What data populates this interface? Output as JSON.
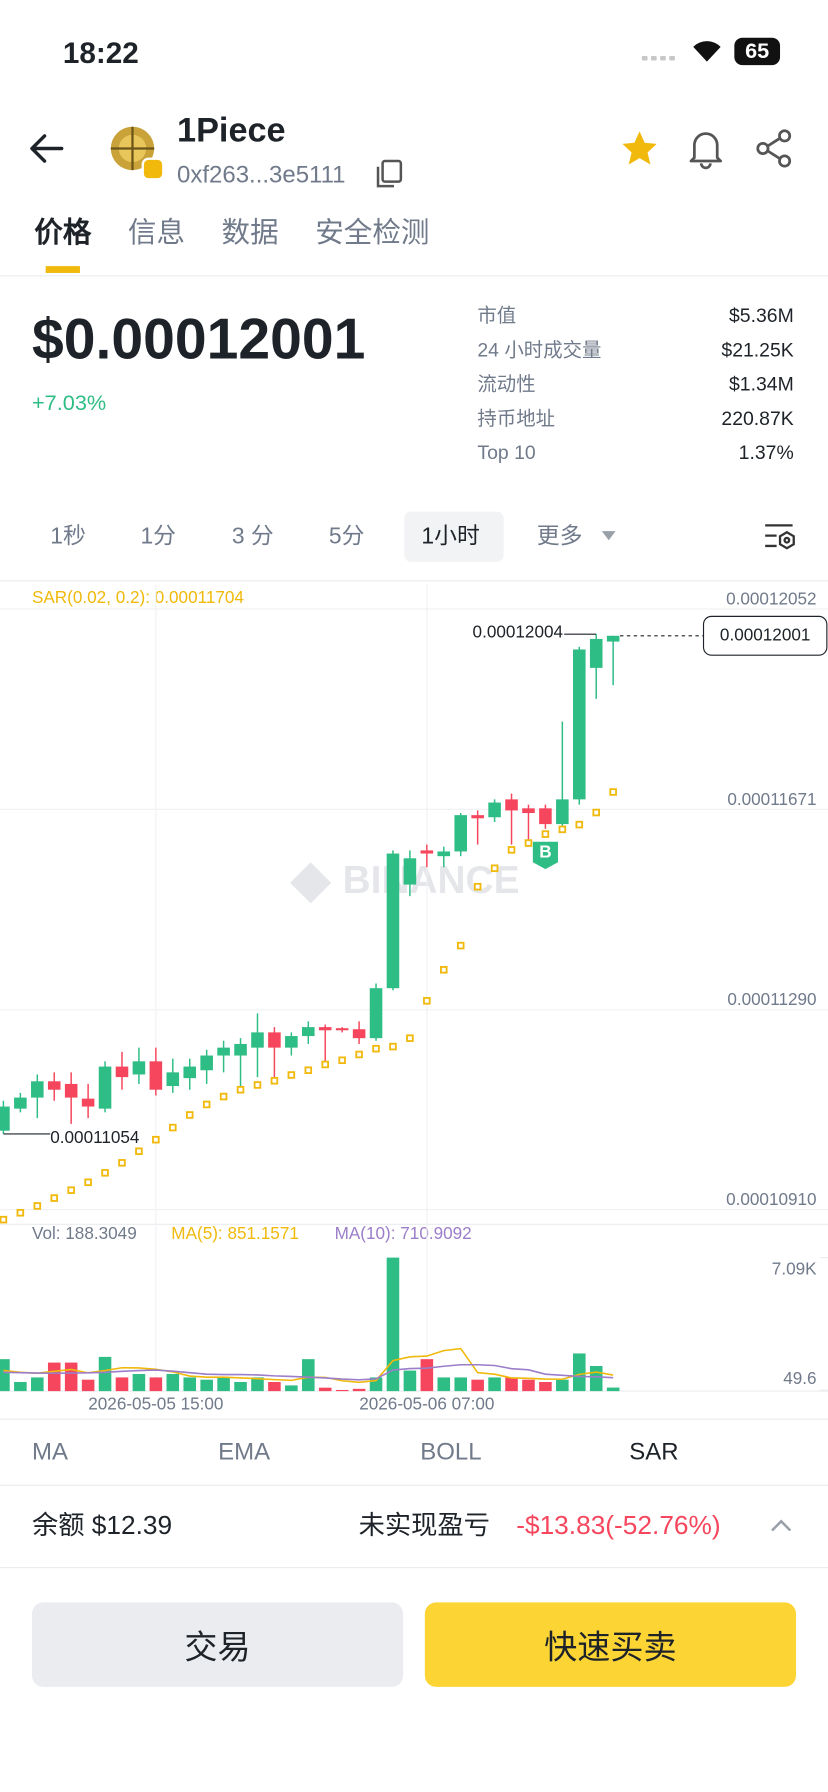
{
  "status_bar": {
    "time": "18:22",
    "battery": "65"
  },
  "header": {
    "title": "1Piece",
    "address": "0xf263...3e5111"
  },
  "tabs": [
    "价格",
    "信息",
    "数据",
    "安全检测"
  ],
  "price": {
    "value": "$0.00012001",
    "change": "+7.03%"
  },
  "stats": [
    [
      "市值",
      "$5.36M"
    ],
    [
      "24 小时成交量",
      "$21.25K"
    ],
    [
      "流动性",
      "$1.34M"
    ],
    [
      "持币地址",
      "220.87K"
    ],
    [
      "Top 10",
      "1.37%"
    ]
  ],
  "intervals": [
    "1秒",
    "1分",
    "3 分",
    "5分",
    "1小时",
    "更多"
  ],
  "chart_data": {
    "type": "candlestick",
    "indicator_label": "SAR(0.02, 0.2): 0.00011704",
    "watermark": "BINANCE",
    "categories": [
      null,
      null,
      null,
      null,
      null,
      null,
      null,
      null,
      null,
      "2026-05-05 15:00",
      null,
      null,
      null,
      null,
      null,
      null,
      null,
      null,
      null,
      null,
      null,
      null,
      null,
      null,
      null,
      "2026-05-06 07:00",
      null,
      null,
      null,
      null,
      null,
      null,
      null,
      null,
      null,
      null,
      null
    ],
    "open": [
      0.0001106,
      0.00011102,
      0.00011123,
      0.00011154,
      0.00011149,
      0.00011121,
      0.00011102,
      0.00011182,
      0.00011167,
      0.00011192,
      0.00011145,
      0.0001116,
      0.00011175,
      0.00011203,
      0.00011203,
      0.00011218,
      0.00011247,
      0.00011218,
      0.0001124,
      0.00011257,
      0.00011255,
      0.00011253,
      0.00011236,
      0.00011331,
      0.00011528,
      0.00011593,
      0.00011582,
      0.00011591,
      0.0001166,
      0.00011656,
      0.0001169,
      0.00011673,
      0.00011673,
      0.00011643,
      0.0001169,
      0.0001194,
      0.0001199
    ],
    "high": [
      0.00011117,
      0.00011132,
      0.00011167,
      0.00011171,
      0.00011171,
      0.00011149,
      0.00011192,
      0.0001121,
      0.00011218,
      0.00011218,
      0.00011197,
      0.00011197,
      0.00011214,
      0.00011231,
      0.00011236,
      0.00011283,
      0.00011257,
      0.00011247,
      0.00011268,
      0.00011262,
      0.00011257,
      0.00011268,
      0.0001134,
      0.00011593,
      0.00011593,
      0.00011604,
      0.000116,
      0.00011664,
      0.00011669,
      0.0001169,
      0.00011701,
      0.0001168,
      0.0001168,
      0.00011838,
      0.0001198,
      0.00012004,
      0.00012001
    ],
    "low": [
      0.00011054,
      0.00011095,
      0.00011084,
      0.00011117,
      0.00011073,
      0.00011084,
      0.00011095,
      0.00011138,
      0.00011149,
      0.00011127,
      0.00011132,
      0.00011138,
      0.00011149,
      0.00011171,
      0.00011138,
      0.00011162,
      0.00011149,
      0.00011203,
      0.00011225,
      0.00011182,
      0.00011247,
      0.00011225,
      0.00011231,
      0.00011327,
      0.00011506,
      0.00011561,
      0.00011561,
      0.00011582,
      0.00011604,
      0.00011647,
      0.00011604,
      0.000116,
      0.00011634,
      0.00011639,
      0.0001168,
      0.00011881,
      0.00011907
    ],
    "close": [
      0.00011106,
      0.00011123,
      0.00011154,
      0.00011138,
      0.00011123,
      0.00011106,
      0.00011182,
      0.00011162,
      0.00011192,
      0.00011138,
      0.00011171,
      0.00011182,
      0.00011203,
      0.00011218,
      0.00011225,
      0.00011247,
      0.00011218,
      0.0001124,
      0.00011257,
      0.00011251,
      0.00011251,
      0.00011236,
      0.00011331,
      0.00011587,
      0.00011578,
      0.00011587,
      0.00011591,
      0.0001166,
      0.00011654,
      0.00011684,
      0.00011669,
      0.00011664,
      0.00011643,
      0.0001169,
      0.00011975,
      0.00011995,
      0.00012001
    ],
    "sar": [
      0.00010891,
      0.00010904,
      0.00010917,
      0.00010932,
      0.00010947,
      0.00010962,
      0.0001098,
      0.00010999,
      0.00011021,
      0.00011043,
      0.00011066,
      0.0001109,
      0.0001111,
      0.00011125,
      0.00011138,
      0.00011147,
      0.00011155,
      0.00011166,
      0.00011175,
      0.00011186,
      0.00011194,
      0.00011205,
      0.00011216,
      0.0001122,
      0.00011236,
      0.00011307,
      0.00011366,
      0.00011412,
      0.00011524,
      0.00011559,
      0.00011594,
      0.00011607,
      0.00011624,
      0.00011633,
      0.00011642,
      0.00011665,
      0.00011704
    ],
    "ylim": [
      0.00010882,
      0.00012098
    ],
    "yticks": [
      0.00012052,
      0.00011671,
      {
        "value": 0.0001129,
        "label": "0.00011290"
      },
      {
        "value": 0.0001091,
        "label": "0.00010910"
      }
    ],
    "max_label": "0.00012004",
    "min_label": "0.00011054",
    "last_label": "0.00012001",
    "buy_marker": "B",
    "up_color": "#2ebd85",
    "down_color": "#f6465d",
    "sar_color": "#f0b90b",
    "volume": {
      "values": [
        1697,
        485,
        727,
        1515,
        1515,
        606,
        1818,
        727,
        909,
        727,
        909,
        727,
        606,
        727,
        485,
        727,
        485,
        303,
        1697,
        182,
        61,
        121,
        727,
        7090,
        1091,
        1697,
        727,
        727,
        606,
        727,
        727,
        606,
        485,
        606,
        2000,
        1333,
        188.3049
      ],
      "ma5": [
        1100,
        1000,
        950,
        1050,
        1150,
        970,
        1090,
        1240,
        1230,
        1160,
        1020,
        800,
        740,
        740,
        700,
        660,
        610,
        570,
        740,
        730,
        550,
        470,
        560,
        1620,
        1820,
        1860,
        2150,
        2260,
        980,
        900,
        700,
        680,
        640,
        630,
        890,
        1010,
        851.1571
      ],
      "ma10": [
        1000,
        980,
        960,
        950,
        960,
        970,
        1000,
        1050,
        1090,
        1120,
        1060,
        980,
        900,
        880,
        880,
        860,
        810,
        780,
        740,
        700,
        640,
        600,
        650,
        1120,
        1200,
        1220,
        1320,
        1400,
        1400,
        1360,
        1190,
        1130,
        900,
        840,
        780,
        760,
        710.9092
      ],
      "ylim": [
        0,
        7400
      ],
      "yticks": [
        {
          "value": 7090,
          "label": "7.09K"
        },
        49.6
      ],
      "legend": [
        "Vol: 188.3049",
        "MA(5): 851.1571",
        "MA(10): 710.9092"
      ],
      "ma5_color": "#f0b90b",
      "ma10_color": "#9b7dc9"
    }
  },
  "indicator_tabs": [
    "MA",
    "EMA",
    "BOLL",
    "SAR"
  ],
  "footer": {
    "balance": "余额 $12.39",
    "pnl_label": "未实现盈亏",
    "pnl": "-$13.83(-52.76%)"
  },
  "buttons": [
    "交易",
    "快速买卖"
  ]
}
